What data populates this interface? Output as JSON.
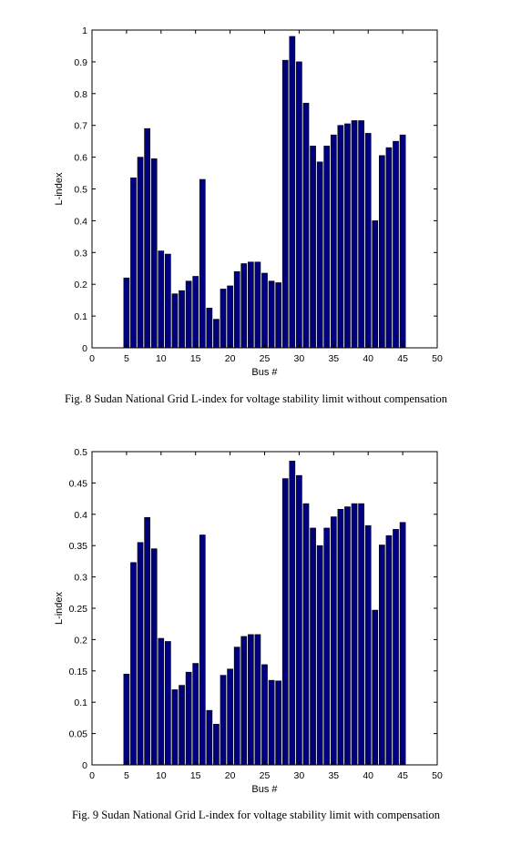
{
  "chart_data": [
    {
      "type": "bar",
      "caption": "Fig. 8 Sudan National Grid L-index for voltage stability limit without compensation",
      "xlabel": "Bus #",
      "ylabel": "L-index",
      "xlim": [
        0,
        50
      ],
      "ylim": [
        0,
        1
      ],
      "xticks": [
        "0",
        "5",
        "10",
        "15",
        "20",
        "25",
        "30",
        "35",
        "40",
        "45",
        "50"
      ],
      "yticks": [
        "0",
        "0.1",
        "0.2",
        "0.3",
        "0.4",
        "0.5",
        "0.6",
        "0.7",
        "0.8",
        "0.9",
        "1"
      ],
      "bar_color": "#00007f",
      "grid": false,
      "x": [
        5,
        6,
        7,
        8,
        9,
        10,
        11,
        12,
        13,
        14,
        15,
        16,
        17,
        18,
        19,
        20,
        21,
        22,
        23,
        24,
        25,
        26,
        27,
        28,
        29,
        30,
        31,
        32,
        33,
        34,
        35,
        36,
        37,
        38,
        39,
        40,
        41,
        42,
        43,
        44,
        45
      ],
      "values": [
        0.22,
        0.535,
        0.6,
        0.69,
        0.595,
        0.305,
        0.295,
        0.17,
        0.18,
        0.21,
        0.225,
        0.53,
        0.125,
        0.09,
        0.185,
        0.195,
        0.24,
        0.265,
        0.27,
        0.27,
        0.235,
        0.21,
        0.205,
        0.905,
        0.98,
        0.9,
        0.77,
        0.635,
        0.585,
        0.635,
        0.67,
        0.7,
        0.705,
        0.715,
        0.715,
        0.675,
        0.4,
        0.605,
        0.63,
        0.65,
        0.67
      ]
    },
    {
      "type": "bar",
      "caption": "Fig. 9 Sudan National Grid L-index for voltage stability limit with compensation",
      "xlabel": "Bus #",
      "ylabel": "L-index",
      "xlim": [
        0,
        50
      ],
      "ylim": [
        0,
        0.5
      ],
      "xticks": [
        "0",
        "5",
        "10",
        "15",
        "20",
        "25",
        "30",
        "35",
        "40",
        "45",
        "50"
      ],
      "yticks": [
        "0",
        "0.05",
        "0.1",
        "0.15",
        "0.2",
        "0.25",
        "0.3",
        "0.35",
        "0.4",
        "0.45",
        "0.5"
      ],
      "bar_color": "#00007f",
      "grid": false,
      "x": [
        5,
        6,
        7,
        8,
        9,
        10,
        11,
        12,
        13,
        14,
        15,
        16,
        17,
        18,
        19,
        20,
        21,
        22,
        23,
        24,
        25,
        26,
        27,
        28,
        29,
        30,
        31,
        32,
        33,
        34,
        35,
        36,
        37,
        38,
        39,
        40,
        41,
        42,
        43,
        44,
        45
      ],
      "values": [
        0.145,
        0.323,
        0.355,
        0.395,
        0.345,
        0.202,
        0.197,
        0.12,
        0.127,
        0.148,
        0.162,
        0.367,
        0.087,
        0.065,
        0.143,
        0.153,
        0.188,
        0.205,
        0.208,
        0.208,
        0.16,
        0.135,
        0.134,
        0.457,
        0.485,
        0.462,
        0.417,
        0.378,
        0.35,
        0.378,
        0.396,
        0.408,
        0.412,
        0.417,
        0.417,
        0.382,
        0.247,
        0.351,
        0.366,
        0.376,
        0.387
      ]
    }
  ],
  "footer_fragment": ""
}
